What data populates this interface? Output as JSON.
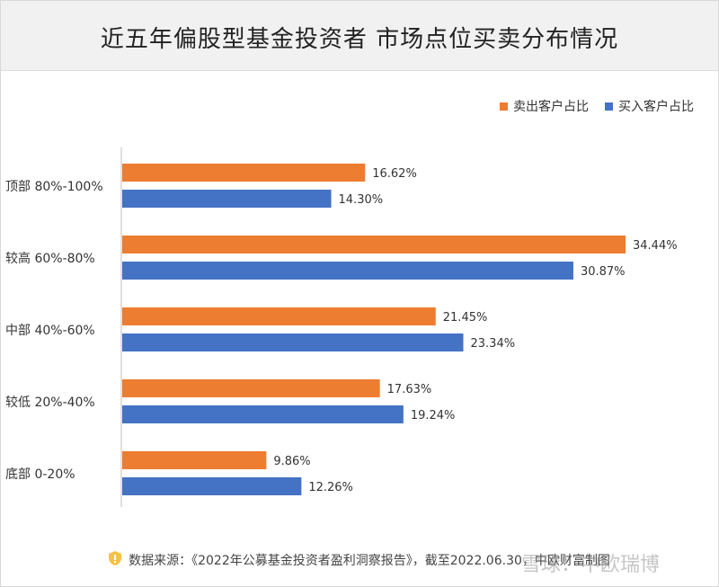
{
  "header": {
    "title": "近五年偏股型基金投资者  市场点位买卖分布情况"
  },
  "legend": {
    "sell_label": "卖出客户占比",
    "buy_label": "买入客户占比"
  },
  "colors": {
    "sell": "#ED7D31",
    "buy": "#4472C4"
  },
  "chart_data": {
    "type": "bar",
    "orientation": "horizontal",
    "categories": [
      "顶部 80%-100%",
      "较高   60%-80%",
      "中部   40%-60%",
      "较低   20%-40%",
      "底部       0-20%"
    ],
    "series": [
      {
        "name": "卖出客户占比",
        "values": [
          16.62,
          34.44,
          21.45,
          17.63,
          9.86
        ]
      },
      {
        "name": "买入客户占比",
        "values": [
          14.3,
          30.87,
          23.34,
          19.24,
          12.26
        ]
      }
    ],
    "value_labels": {
      "sell": [
        "16.62%",
        "34.44%",
        "21.45%",
        "17.63%",
        "9.86%"
      ],
      "buy": [
        "14.30%",
        "30.87%",
        "23.34%",
        "19.24%",
        "12.26%"
      ]
    },
    "legend_position": "top-right",
    "grid": false
  },
  "footer": {
    "source": "数据来源：《2022年公募基金投资者盈利洞察报告》，截至2022.06.30，中欧财富制图",
    "icon": "shield-icon"
  },
  "watermark": "雪球：中欧瑞博"
}
